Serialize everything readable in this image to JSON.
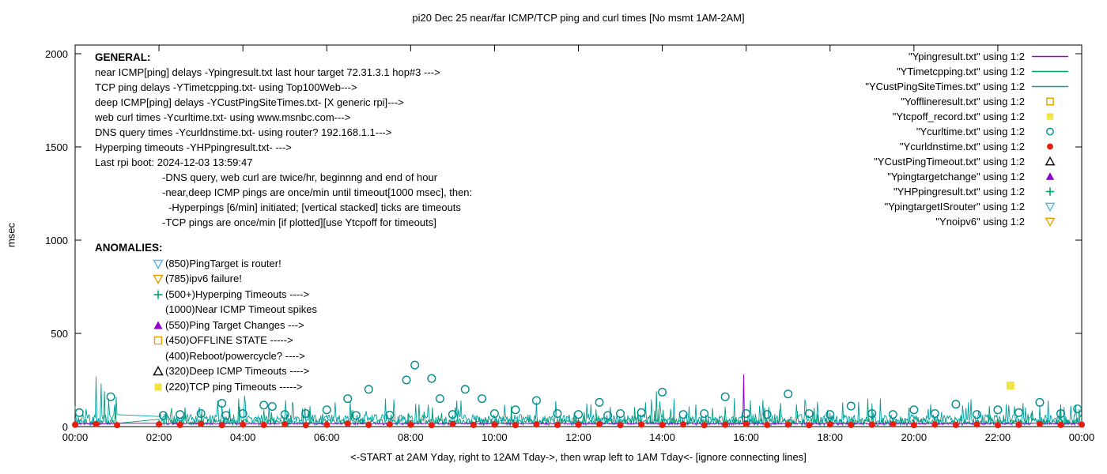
{
  "title": "pi20 Dec 25 near/far ICMP/TCP ping and curl times [No msmt 1AM-2AM]",
  "chart_data": {
    "type": "line",
    "ylabel": "msec",
    "xlabel": "<-START at 2AM Yday, right to 12AM Tday->, then wrap left to 1AM Tday<- [ignore connecting lines]",
    "ylim": [
      0,
      2000
    ],
    "yticks": [
      0,
      500,
      1000,
      1500,
      2000
    ],
    "xticks": [
      {
        "t": 0,
        "label": "00:00"
      },
      {
        "t": 2,
        "label": "02:00"
      },
      {
        "t": 4,
        "label": "04:00"
      },
      {
        "t": 6,
        "label": "06:00"
      },
      {
        "t": 8,
        "label": "08:00"
      },
      {
        "t": 10,
        "label": "10:00"
      },
      {
        "t": 12,
        "label": "12:00"
      },
      {
        "t": 14,
        "label": "14:00"
      },
      {
        "t": 16,
        "label": "16:00"
      },
      {
        "t": 18,
        "label": "18:00"
      },
      {
        "t": 20,
        "label": "20:00"
      },
      {
        "t": 22,
        "label": "22:00"
      },
      {
        "t": 24,
        "label": "00:00"
      }
    ],
    "legend": [
      {
        "label": "\"Ypingresult.txt\" using 1:2",
        "marker": "line",
        "color": "#9400d3"
      },
      {
        "label": "\"YTimetcpping.txt\" using 1:2",
        "marker": "line",
        "color": "#009e73"
      },
      {
        "label": "\"YCustPingSiteTimes.txt\" using 1:2",
        "marker": "line",
        "color": "#00a0a0"
      },
      {
        "label": "\"Yofflineresult.txt\" using 1:2",
        "marker": "square-open",
        "color": "#e69f00"
      },
      {
        "label": "\"Ytcpoff_record.txt\" using 1:2",
        "marker": "square-filled",
        "color": "#f0e442"
      },
      {
        "label": "\"Ycurltime.txt\" using 1:2",
        "marker": "circle-open",
        "color": "#008b8b"
      },
      {
        "label": "\"Ycurldnstime.txt\" using 1:2",
        "marker": "circle-filled",
        "color": "#e51e10"
      },
      {
        "label": "\"YCustPingTimeout.txt\" using 1:2",
        "marker": "tri-up-open",
        "color": "#000000"
      },
      {
        "label": "\"Ypingtargetchange\" using 1:2",
        "marker": "tri-up-filled",
        "color": "#9400d3"
      },
      {
        "label": "\"YHPpingresult.txt\" using 1:2",
        "marker": "plus",
        "color": "#009e73"
      },
      {
        "label": "\"YpingtargetISrouter\" using 1:2",
        "marker": "tri-down-open",
        "color": "#56b4e9"
      },
      {
        "label": "\"Ynoipv6\" using 1:2",
        "marker": "tri-down-open",
        "color": "#e69f00"
      }
    ],
    "annotations": {
      "general": {
        "heading": "GENERAL:",
        "lines": [
          {
            "text": "near ICMP[ping] delays -Ypingresult.txt last hour target 72.31.3.1 hop#3 --->",
            "indent": 0
          },
          {
            "text": "TCP ping delays -YTimetcpping.txt- using Top100Web--->",
            "indent": 0
          },
          {
            "text": "deep ICMP[ping] delays -YCustPingSiteTimes.txt- [X generic rpi]--->",
            "indent": 0
          },
          {
            "text": "web curl times -Ycurltime.txt- using www.msnbc.com--->",
            "indent": 0
          },
          {
            "text": "DNS query times -Ycurldnstime.txt- using router? 192.168.1.1--->",
            "indent": 0
          },
          {
            "text": "Hyperping timeouts -YHPpingresult.txt- --->",
            "indent": 0
          },
          {
            "text": "Last rpi boot: 2024-12-03 13:59:47",
            "indent": 0
          },
          {
            "text": "-DNS query, web curl are twice/hr, beginnng and end of hour",
            "indent": 85
          },
          {
            "text": "-near,deep ICMP pings are once/min until timeout[1000 msec], then:",
            "indent": 85
          },
          {
            "text": "-Hyperpings [6/min] initiated; [vertical stacked] ticks are timeouts",
            "indent": 93
          },
          {
            "text": "-TCP pings are once/min [if plotted][use Ytcpoff for timeouts]",
            "indent": 85
          }
        ]
      },
      "anomalies": {
        "heading": "ANOMALIES:",
        "items": [
          {
            "marker": "tri-down-open",
            "color": "#56b4e9",
            "text": "(850)PingTarget is router!"
          },
          {
            "marker": "tri-down-open",
            "color": "#e69f00",
            "text": "(785)ipv6 failure!"
          },
          {
            "marker": "plus",
            "color": "#009e73",
            "text": "(500+)Hyperping Timeouts ---->"
          },
          {
            "marker": "none",
            "color": "",
            "text": "(1000)Near ICMP Timeout spikes"
          },
          {
            "marker": "tri-up-filled",
            "color": "#9400d3",
            "text": "(550)Ping Target Changes --->"
          },
          {
            "marker": "square-open",
            "color": "#e69f00",
            "text": "(450)OFFLINE STATE ----->"
          },
          {
            "marker": "none",
            "color": "",
            "text": "(400)Reboot/powercycle? ---->"
          },
          {
            "marker": "tri-up-open",
            "color": "#000000",
            "text": "(320)Deep ICMP Timeouts ---->"
          },
          {
            "marker": "square-filled",
            "color": "#f0e442",
            "text": "(220)TCP ping Timeouts ----->"
          }
        ]
      }
    },
    "series": [
      {
        "name": "YCustPingSiteTimes.txt",
        "kind": "line",
        "color": "#00a0a0",
        "width": 0.9,
        "seed": 7,
        "baseline": 10,
        "noise": 55,
        "spike_chance": 0.07,
        "spike_min": 30,
        "spike_max": 100,
        "gap": [
          1.0,
          2.0
        ],
        "spikes": [
          [
            0.25,
            95
          ],
          [
            0.5,
            268
          ],
          [
            0.62,
            230
          ],
          [
            0.8,
            150
          ],
          [
            0.98,
            160
          ],
          [
            3.4,
            140
          ],
          [
            4.05,
            165
          ],
          [
            5.2,
            120
          ],
          [
            6.2,
            130
          ],
          [
            7.4,
            150
          ],
          [
            9.2,
            140
          ],
          [
            11.0,
            130
          ],
          [
            12.3,
            120
          ],
          [
            13.6,
            130
          ],
          [
            14.8,
            120
          ],
          [
            16.1,
            140
          ],
          [
            17.2,
            120
          ],
          [
            18.3,
            130
          ],
          [
            19.2,
            150
          ],
          [
            20.4,
            120
          ],
          [
            21.3,
            130
          ],
          [
            22.2,
            120
          ],
          [
            23.2,
            140
          ]
        ]
      },
      {
        "name": "YTimetcpping.txt",
        "kind": "line",
        "color": "#009e73",
        "width": 0.9,
        "seed": 13,
        "baseline": 6,
        "noise": 35,
        "spike_chance": 0.05,
        "spike_min": 20,
        "spike_max": 80,
        "gap": [
          1.0,
          2.0
        ],
        "spikes": [
          [
            0.7,
            190
          ],
          [
            0.97,
            100
          ],
          [
            2.3,
            100
          ],
          [
            3.9,
            150
          ],
          [
            5.6,
            110
          ],
          [
            8.2,
            120
          ],
          [
            10.4,
            110
          ],
          [
            13.85,
            190
          ],
          [
            15.2,
            100
          ],
          [
            18.9,
            150
          ],
          [
            21.8,
            110
          ],
          [
            23.5,
            120
          ]
        ]
      },
      {
        "name": "Ypingresult.txt",
        "kind": "line",
        "color": "#9400d3",
        "width": 1,
        "seed": 21,
        "baseline": 13,
        "noise": 7,
        "spike_chance": 0,
        "spike_min": 0,
        "spike_max": 0,
        "gap": [
          1.0,
          2.0
        ],
        "spikes": [
          [
            15.93,
            280
          ]
        ]
      },
      {
        "name": "Ycurltime.txt",
        "kind": "scatter",
        "marker": "circle-open",
        "color": "#008b8b",
        "size": 4.8,
        "points": [
          [
            0.1,
            75
          ],
          [
            0.85,
            160
          ],
          [
            2.1,
            60
          ],
          [
            2.5,
            65
          ],
          [
            3.0,
            70
          ],
          [
            3.5,
            125
          ],
          [
            3.6,
            60
          ],
          [
            4.0,
            70
          ],
          [
            4.5,
            115
          ],
          [
            4.7,
            108
          ],
          [
            5.0,
            65
          ],
          [
            5.5,
            70
          ],
          [
            6.0,
            90
          ],
          [
            6.5,
            150
          ],
          [
            6.7,
            60
          ],
          [
            7.0,
            200
          ],
          [
            7.5,
            62
          ],
          [
            7.9,
            250
          ],
          [
            8.1,
            330
          ],
          [
            8.5,
            258
          ],
          [
            8.7,
            150
          ],
          [
            9.0,
            65
          ],
          [
            9.3,
            200
          ],
          [
            9.7,
            150
          ],
          [
            10.0,
            70
          ],
          [
            10.5,
            90
          ],
          [
            11.0,
            140
          ],
          [
            11.5,
            70
          ],
          [
            12.0,
            65
          ],
          [
            12.5,
            130
          ],
          [
            12.7,
            60
          ],
          [
            13.0,
            70
          ],
          [
            13.5,
            75
          ],
          [
            14.0,
            185
          ],
          [
            14.5,
            65
          ],
          [
            15.0,
            70
          ],
          [
            15.5,
            160
          ],
          [
            16.0,
            70
          ],
          [
            16.5,
            65
          ],
          [
            17.0,
            175
          ],
          [
            17.5,
            70
          ],
          [
            18.0,
            65
          ],
          [
            18.5,
            110
          ],
          [
            19.0,
            70
          ],
          [
            19.5,
            65
          ],
          [
            20.0,
            90
          ],
          [
            20.5,
            70
          ],
          [
            21.0,
            120
          ],
          [
            21.5,
            65
          ],
          [
            22.0,
            90
          ],
          [
            22.5,
            75
          ],
          [
            23.0,
            130
          ],
          [
            23.5,
            70
          ],
          [
            23.9,
            95
          ]
        ]
      },
      {
        "name": "Ycurldnstime.txt",
        "kind": "scatter",
        "marker": "circle-filled",
        "color": "#e51e10",
        "size": 4.3,
        "points": [
          [
            0,
            10
          ],
          [
            0.5,
            14
          ],
          [
            1,
            8
          ],
          [
            2,
            12
          ],
          [
            2.5,
            9
          ],
          [
            3,
            15
          ],
          [
            3.5,
            8
          ],
          [
            4,
            11
          ],
          [
            4.5,
            9
          ],
          [
            5,
            13
          ],
          [
            5.5,
            8
          ],
          [
            6,
            10
          ],
          [
            6.5,
            16
          ],
          [
            7,
            9
          ],
          [
            7.5,
            12
          ],
          [
            8,
            10
          ],
          [
            8.5,
            8
          ],
          [
            9,
            14
          ],
          [
            9.5,
            9
          ],
          [
            10,
            11
          ],
          [
            10.5,
            8
          ],
          [
            11,
            12
          ],
          [
            11.5,
            9
          ],
          [
            12,
            10
          ],
          [
            12.5,
            13
          ],
          [
            13,
            8
          ],
          [
            13.5,
            11
          ],
          [
            14,
            9
          ],
          [
            14.5,
            12
          ],
          [
            15,
            8
          ],
          [
            15.5,
            10
          ],
          [
            16,
            14
          ],
          [
            16.5,
            9
          ],
          [
            17,
            11
          ],
          [
            17.5,
            8
          ],
          [
            18,
            12
          ],
          [
            18.5,
            9
          ],
          [
            19,
            10
          ],
          [
            19.5,
            13
          ],
          [
            20,
            8
          ],
          [
            20.5,
            11
          ],
          [
            21,
            9
          ],
          [
            21.5,
            12
          ],
          [
            22,
            8
          ],
          [
            22.5,
            10
          ],
          [
            23,
            14
          ],
          [
            23.5,
            9
          ],
          [
            24,
            11
          ]
        ]
      },
      {
        "name": "Ytcpoff_record.txt",
        "kind": "scatter",
        "marker": "square-filled",
        "color": "#f0e442",
        "size": 5,
        "points": [
          [
            22.3,
            220
          ]
        ]
      }
    ]
  }
}
